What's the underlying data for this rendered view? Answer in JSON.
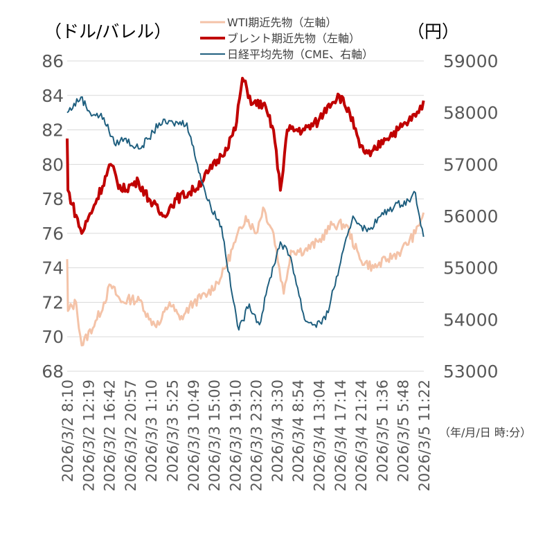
{
  "chart_data": {
    "type": "line",
    "left_unit": "（ドル/バレル）",
    "right_unit": "（円）",
    "x_unit_note": "（年/月/日 時:分）",
    "left_ylim": [
      68,
      86
    ],
    "left_ticks": [
      "68",
      "70",
      "72",
      "74",
      "76",
      "78",
      "80",
      "82",
      "84",
      "86"
    ],
    "right_ylim": [
      53000,
      59000
    ],
    "right_ticks": [
      "53000",
      "54000",
      "55000",
      "56000",
      "57000",
      "58000",
      "59000"
    ],
    "grid": true,
    "legend_position": "top-center",
    "x_categories": [
      "2026/3/2 8:10",
      "2026/3/2 12:19",
      "2026/3/2 16:42",
      "2026/3/2 20:57",
      "2026/3/3 1:10",
      "2026/3/3 5:25",
      "2026/3/3 10:49",
      "2026/3/3 15:00",
      "2026/3/3 19:10",
      "2026/3/3 23:20",
      "2026/3/4 3:30",
      "2026/3/4 8:54",
      "2026/3/4 13:04",
      "2026/3/4 17:14",
      "2026/3/4 21:24",
      "2026/3/5 1:36",
      "2026/3/5 5:48",
      "2026/3/5 11:22"
    ],
    "series": [
      {
        "name": "WTI期近先物（左軸）",
        "axis": "left",
        "color": "#f4c3a8",
        "width": 3,
        "points": [
          [
            0,
            74.5
          ],
          [
            0.03,
            71.5
          ],
          [
            0.35,
            72
          ],
          [
            0.57,
            69.5
          ],
          [
            1.17,
            71
          ],
          [
            1.71,
            73
          ],
          [
            2.12,
            72
          ],
          [
            2.53,
            72.2
          ],
          [
            2.94,
            72
          ],
          [
            3.21,
            71
          ],
          [
            3.61,
            70.7
          ],
          [
            4.02,
            72
          ],
          [
            4.43,
            71
          ],
          [
            4.97,
            72
          ],
          [
            5.52,
            72.5
          ],
          [
            6.06,
            73.5
          ],
          [
            6.6,
            75.5
          ],
          [
            7.01,
            77
          ],
          [
            7.42,
            76
          ],
          [
            7.69,
            77.5
          ],
          [
            8.1,
            76
          ],
          [
            8.5,
            72.5
          ],
          [
            8.78,
            75
          ],
          [
            9.32,
            75
          ],
          [
            9.86,
            75.5
          ],
          [
            10.41,
            76.5
          ],
          [
            10.95,
            76.5
          ],
          [
            11.49,
            74.5
          ],
          [
            12.04,
            74
          ],
          [
            12.58,
            74.5
          ],
          [
            13.12,
            75
          ],
          [
            13.67,
            76
          ],
          [
            13.99,
            77.2
          ]
        ]
      },
      {
        "name": "ブレント期近先物（左軸）",
        "axis": "left",
        "color": "#c00000",
        "width": 4,
        "points": [
          [
            0,
            81.5
          ],
          [
            0.03,
            78.5
          ],
          [
            0.57,
            76
          ],
          [
            1.17,
            78
          ],
          [
            1.71,
            80
          ],
          [
            2.12,
            78.5
          ],
          [
            2.8,
            79
          ],
          [
            3.21,
            78
          ],
          [
            3.75,
            77
          ],
          [
            4.29,
            78
          ],
          [
            4.97,
            78.5
          ],
          [
            5.52,
            79.5
          ],
          [
            6.06,
            80.5
          ],
          [
            6.6,
            82
          ],
          [
            6.88,
            85
          ],
          [
            7.28,
            83.5
          ],
          [
            7.69,
            83.5
          ],
          [
            8.1,
            82
          ],
          [
            8.37,
            78.5
          ],
          [
            8.64,
            82
          ],
          [
            9.32,
            82
          ],
          [
            9.86,
            82.5
          ],
          [
            10.27,
            83.5
          ],
          [
            10.68,
            84
          ],
          [
            11.09,
            83
          ],
          [
            11.49,
            81
          ],
          [
            11.9,
            80.5
          ],
          [
            12.45,
            81.5
          ],
          [
            12.99,
            82
          ],
          [
            13.4,
            82.5
          ],
          [
            13.8,
            83
          ],
          [
            13.99,
            83.7
          ]
        ]
      },
      {
        "name": "日経平均先物（CME、右軸）",
        "axis": "right",
        "color": "#1f5f7f",
        "width": 2,
        "points": [
          [
            0,
            58000
          ],
          [
            0.54,
            58300
          ],
          [
            0.9,
            58000
          ],
          [
            1.44,
            57900
          ],
          [
            1.85,
            57400
          ],
          [
            2.25,
            57500
          ],
          [
            2.8,
            57300
          ],
          [
            3.21,
            57500
          ],
          [
            3.61,
            57800
          ],
          [
            4.16,
            57800
          ],
          [
            4.7,
            57800
          ],
          [
            5.11,
            57000
          ],
          [
            5.52,
            56300
          ],
          [
            6.06,
            55800
          ],
          [
            6.47,
            54500
          ],
          [
            6.74,
            53800
          ],
          [
            7.15,
            54300
          ],
          [
            7.55,
            53900
          ],
          [
            7.96,
            54800
          ],
          [
            8.37,
            55500
          ],
          [
            8.78,
            55200
          ],
          [
            9.32,
            54000
          ],
          [
            9.73,
            53900
          ],
          [
            10.14,
            54000
          ],
          [
            10.68,
            55000
          ],
          [
            11.22,
            56000
          ],
          [
            11.77,
            55700
          ],
          [
            12.31,
            56000
          ],
          [
            12.85,
            56200
          ],
          [
            13.4,
            56300
          ],
          [
            13.67,
            56450
          ],
          [
            13.99,
            55600
          ]
        ]
      }
    ]
  }
}
